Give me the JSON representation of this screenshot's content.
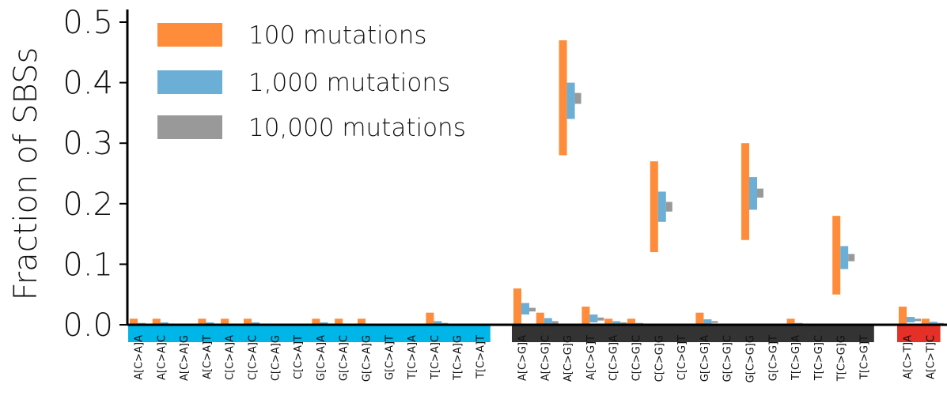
{
  "chart_data": {
    "type": "bar",
    "ylabel": "Fraction of SBSs",
    "ylim": [
      0,
      0.52
    ],
    "yticks": [
      "0.0",
      "0.1",
      "0.2",
      "0.3",
      "0.4",
      "0.5"
    ],
    "ytick_values": [
      0.0,
      0.1,
      0.2,
      0.3,
      0.4,
      0.5
    ],
    "grid": false,
    "legend_position": "top-left",
    "colors": {
      "100 mutations": "#ff8c3a",
      "1,000 mutations": "#6bafd6",
      "10,000 mutations": "#999999",
      "C>A": "#00b6e8",
      "C>G": "#333333",
      "C>T": "#e53028"
    },
    "series": [
      {
        "name": "100 mutations"
      },
      {
        "name": "1,000 mutations"
      },
      {
        "name": "10,000 mutations"
      }
    ],
    "groups": [
      {
        "id": "C>A",
        "categories": [
          "A[C>A]A",
          "A[C>A]C",
          "A[C>A]G",
          "A[C>A]T",
          "C[C>A]A",
          "C[C>A]C",
          "C[C>A]G",
          "C[C>A]T",
          "G[C>A]A",
          "G[C>A]C",
          "G[C>A]G",
          "G[C>A]T",
          "T[C>A]A",
          "T[C>A]C",
          "T[C>A]G",
          "T[C>A]T"
        ],
        "ranges": [
          [
            [
              0,
              0.01
            ],
            [
              0,
              0.003
            ],
            [
              0,
              0.001
            ]
          ],
          [
            [
              0,
              0.01
            ],
            [
              0,
              0.004
            ],
            [
              0,
              0.002
            ]
          ],
          [
            [
              0,
              0
            ],
            [
              0,
              0.001
            ],
            [
              0,
              0
            ]
          ],
          [
            [
              0,
              0.01
            ],
            [
              0,
              0.004
            ],
            [
              0,
              0.002
            ]
          ],
          [
            [
              0,
              0.01
            ],
            [
              0,
              0.002
            ],
            [
              0,
              0.001
            ]
          ],
          [
            [
              0,
              0.01
            ],
            [
              0,
              0.004
            ],
            [
              0,
              0.002
            ]
          ],
          [
            [
              0,
              0
            ],
            [
              0,
              0
            ],
            [
              0,
              0
            ]
          ],
          [
            [
              0,
              0
            ],
            [
              0,
              0
            ],
            [
              0,
              0
            ]
          ],
          [
            [
              0,
              0.01
            ],
            [
              0,
              0.004
            ],
            [
              0,
              0.002
            ]
          ],
          [
            [
              0,
              0.01
            ],
            [
              0,
              0.002
            ],
            [
              0,
              0.001
            ]
          ],
          [
            [
              0,
              0.01
            ],
            [
              0,
              0.002
            ],
            [
              0,
              0.001
            ]
          ],
          [
            [
              0,
              0
            ],
            [
              0,
              0
            ],
            [
              0,
              0
            ]
          ],
          [
            [
              0,
              0
            ],
            [
              0,
              0
            ],
            [
              0,
              0
            ]
          ],
          [
            [
              0,
              0.02
            ],
            [
              0,
              0.006
            ],
            [
              0,
              0.003
            ]
          ],
          [
            [
              0,
              0
            ],
            [
              0,
              0.001
            ],
            [
              0,
              0
            ]
          ],
          [
            [
              0,
              0
            ],
            [
              0,
              0
            ],
            [
              0,
              0
            ]
          ]
        ]
      },
      {
        "id": "C>G",
        "categories": [
          "A[C>G]A",
          "A[C>G]C",
          "A[C>G]G",
          "A[C>G]T",
          "C[C>G]A",
          "C[C>G]C",
          "C[C>G]G",
          "C[C>G]T",
          "G[C>G]A",
          "G[C>G]C",
          "G[C>G]G",
          "G[C>G]T",
          "T[C>G]A",
          "T[C>G]C",
          "T[C>G]G",
          "T[C>G]T"
        ],
        "ranges": [
          [
            [
              0,
              0.06
            ],
            [
              0.017,
              0.036
            ],
            [
              0.022,
              0.028
            ]
          ],
          [
            [
              0,
              0.02
            ],
            [
              0,
              0.011
            ],
            [
              0.002,
              0.006
            ]
          ],
          [
            [
              0.28,
              0.47
            ],
            [
              0.34,
              0.4
            ],
            [
              0.365,
              0.383
            ]
          ],
          [
            [
              0,
              0.03
            ],
            [
              0.004,
              0.017
            ],
            [
              0.007,
              0.012
            ]
          ],
          [
            [
              0,
              0.01
            ],
            [
              0,
              0.006
            ],
            [
              0.001,
              0.004
            ]
          ],
          [
            [
              0,
              0.01
            ],
            [
              0,
              0.003
            ],
            [
              0,
              0.002
            ]
          ],
          [
            [
              0.12,
              0.27
            ],
            [
              0.17,
              0.22
            ],
            [
              0.187,
              0.203
            ]
          ],
          [
            [
              0,
              0
            ],
            [
              0,
              0.001
            ],
            [
              0,
              0
            ]
          ],
          [
            [
              0,
              0.02
            ],
            [
              0.002,
              0.009
            ],
            [
              0.003,
              0.006
            ]
          ],
          [
            [
              0,
              0
            ],
            [
              0,
              0.001
            ],
            [
              0,
              0
            ]
          ],
          [
            [
              0.14,
              0.3
            ],
            [
              0.19,
              0.244
            ],
            [
              0.21,
              0.225
            ]
          ],
          [
            [
              0,
              0
            ],
            [
              0,
              0.001
            ],
            [
              0,
              0
            ]
          ],
          [
            [
              0,
              0.01
            ],
            [
              0,
              0.003
            ],
            [
              0,
              0.002
            ]
          ],
          [
            [
              0,
              0
            ],
            [
              0,
              0
            ],
            [
              0,
              0
            ]
          ],
          [
            [
              0.05,
              0.18
            ],
            [
              0.092,
              0.13
            ],
            [
              0.105,
              0.117
            ]
          ],
          [
            [
              0,
              0
            ],
            [
              0,
              0
            ],
            [
              0,
              0
            ]
          ]
        ]
      },
      {
        "id": "C>T",
        "categories": [
          "A[C>T]A",
          "A[C>T]C"
        ],
        "ranges": [
          [
            [
              0,
              0.03
            ],
            [
              0.004,
              0.013
            ],
            [
              0.006,
              0.01
            ]
          ],
          [
            [
              0,
              0.01
            ],
            [
              0,
              0.005
            ],
            [
              0.001,
              0.003
            ]
          ]
        ]
      }
    ]
  }
}
